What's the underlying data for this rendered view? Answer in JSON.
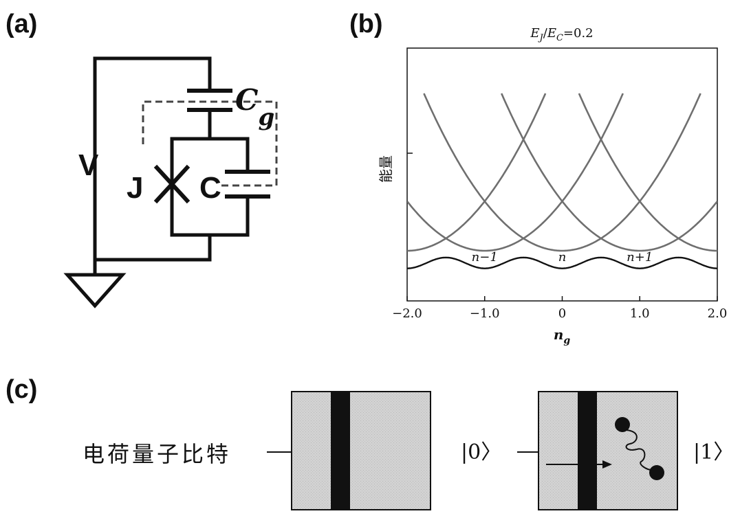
{
  "panels": {
    "a": {
      "label": "(a)"
    },
    "b": {
      "label": "(b)"
    },
    "c": {
      "label": "(c)"
    }
  },
  "circuit": {
    "voltage_label": "V",
    "junction_label": "J",
    "capacitor_label": "C",
    "gate_cap_letter": "C",
    "gate_cap_sub": "g"
  },
  "chart_data": {
    "type": "line",
    "title_ratio_num": "E",
    "title_ratio_num_sub": "J",
    "title_ratio_den": "E",
    "title_ratio_den_sub": "C",
    "title_value": "=0.2",
    "ylabel": "能量",
    "xlabel_main": "n",
    "xlabel_sub": "g",
    "xlim": [
      -2.0,
      2.0
    ],
    "xticks": [
      "−2.0",
      "−1.0",
      "0",
      "1.0",
      "2.0"
    ],
    "xtick_values": [
      -2.0,
      -1.0,
      0,
      1.0,
      2.0
    ],
    "parabola_centers": [
      -2,
      -1,
      0,
      1,
      2
    ],
    "state_labels": [
      {
        "text": "n−1",
        "x": -1.0
      },
      {
        "text": "n",
        "x": 0.0
      },
      {
        "text": "n+1",
        "x": 1.0
      }
    ]
  },
  "qubit": {
    "caption": "电荷量子比特",
    "state0": "|0〉",
    "state1": "|1〉"
  }
}
